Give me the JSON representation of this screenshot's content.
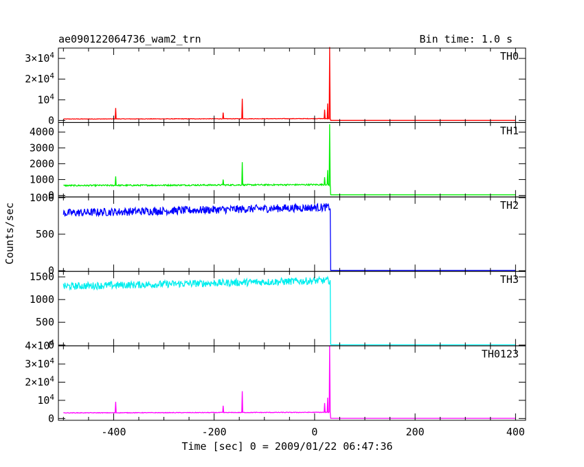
{
  "header": {
    "title": "ae090122064736_wam2_trn",
    "bin_time": "Bin time: 1.0 s"
  },
  "chart_data": {
    "type": "line",
    "xlabel": "Time [sec] 0 = 2009/01/22 06:47:36",
    "ylabel": "Counts/sec",
    "xlim": [
      -510,
      420
    ],
    "x_ticks": [
      -400,
      -200,
      0,
      200,
      400
    ],
    "x_tick_labels": [
      "-400",
      "-200",
      "0",
      "200",
      "400"
    ],
    "shared_x_axis": true,
    "grid": false,
    "panels": [
      {
        "name": "TH0",
        "color": "#ff0000",
        "ylim": [
          -1000,
          35000
        ],
        "y_ticks": [
          0,
          10000,
          20000,
          30000
        ],
        "y_tick_labels": [
          {
            "mantissa": "0",
            "exp": ""
          },
          {
            "mantissa": "10",
            "exp": "4"
          },
          {
            "mantissa": "2×10",
            "exp": "4"
          },
          {
            "mantissa": "3×10",
            "exp": "4"
          }
        ],
        "baseline_start": 700,
        "baseline_end": 900,
        "after_level": 40,
        "noise": 120,
        "spikes": [
          {
            "x": -396,
            "y": 6000
          },
          {
            "x": -182,
            "y": 3800
          },
          {
            "x": -144,
            "y": 10500
          },
          {
            "x": 20,
            "y": 5200
          },
          {
            "x": 26,
            "y": 8200
          },
          {
            "x": 30,
            "y": 35500
          }
        ]
      },
      {
        "name": "TH1",
        "color": "#00ee00",
        "ylim": [
          -100,
          4600
        ],
        "y_ticks": [
          0,
          1000,
          2000,
          3000,
          4000
        ],
        "y_tick_labels": [
          {
            "mantissa": "0",
            "exp": ""
          },
          {
            "mantissa": "1000",
            "exp": ""
          },
          {
            "mantissa": "2000",
            "exp": ""
          },
          {
            "mantissa": "3000",
            "exp": ""
          },
          {
            "mantissa": "4000",
            "exp": ""
          }
        ],
        "baseline_start": 620,
        "baseline_end": 680,
        "after_level": 35,
        "noise": 45,
        "spikes": [
          {
            "x": -396,
            "y": 1200
          },
          {
            "x": -182,
            "y": 1000
          },
          {
            "x": -144,
            "y": 2100
          },
          {
            "x": 20,
            "y": 1150
          },
          {
            "x": 26,
            "y": 1600
          },
          {
            "x": 30,
            "y": 4500
          }
        ]
      },
      {
        "name": "TH2",
        "color": "#0000ff",
        "ylim": [
          -10,
          1010
        ],
        "y_ticks": [
          0,
          500,
          1000
        ],
        "y_tick_labels": [
          {
            "mantissa": "0",
            "exp": ""
          },
          {
            "mantissa": "500",
            "exp": ""
          },
          {
            "mantissa": "1000",
            "exp": ""
          }
        ],
        "baseline_start": 790,
        "baseline_end": 870,
        "after_level": 5,
        "noise": 55,
        "spikes": []
      },
      {
        "name": "TH3",
        "color": "#00eeee",
        "ylim": [
          -20,
          1620
        ],
        "y_ticks": [
          0,
          500,
          1000,
          1500
        ],
        "y_tick_labels": [
          {
            "mantissa": "0",
            "exp": ""
          },
          {
            "mantissa": "500",
            "exp": ""
          },
          {
            "mantissa": "1000",
            "exp": ""
          },
          {
            "mantissa": "1500",
            "exp": ""
          }
        ],
        "baseline_start": 1290,
        "baseline_end": 1420,
        "after_level": 5,
        "noise": 80,
        "spikes": []
      },
      {
        "name": "TH0123",
        "color": "#ff00ff",
        "ylim": [
          -1000,
          40000
        ],
        "y_ticks": [
          0,
          10000,
          20000,
          30000,
          40000
        ],
        "y_tick_labels": [
          {
            "mantissa": "0",
            "exp": ""
          },
          {
            "mantissa": "10",
            "exp": "4"
          },
          {
            "mantissa": "2×10",
            "exp": "4"
          },
          {
            "mantissa": "3×10",
            "exp": "4"
          },
          {
            "mantissa": "4×10",
            "exp": "4"
          }
        ],
        "baseline_start": 3100,
        "baseline_end": 3400,
        "after_level": 80,
        "noise": 160,
        "spikes": [
          {
            "x": -396,
            "y": 9200
          },
          {
            "x": -182,
            "y": 7000
          },
          {
            "x": -144,
            "y": 15000
          },
          {
            "x": 20,
            "y": 8500
          },
          {
            "x": 26,
            "y": 11500
          },
          {
            "x": 30,
            "y": 40000
          }
        ]
      }
    ]
  }
}
